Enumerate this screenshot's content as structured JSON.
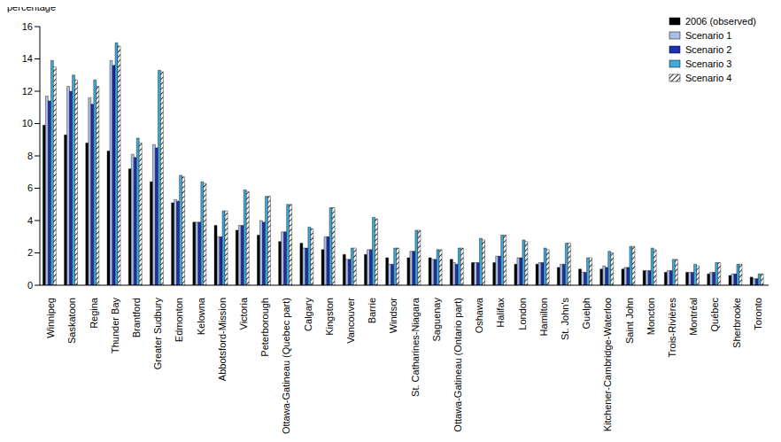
{
  "chart_data": {
    "type": "bar",
    "y_label": "percentage",
    "categories": [
      "Winnipeg",
      "Saskatoon",
      "Regina",
      "Thunder Bay",
      "Brantford",
      "Greater Sudbury",
      "Edmonton",
      "Kelowna",
      "Abbotsford-Mission",
      "Victoria",
      "Peterborough",
      "Ottawa-Gatineau (Quebec part)",
      "Calgary",
      "Kingston",
      "Vancouver",
      "Barrie",
      "Windsor",
      "St. Catharines-Niagara",
      "Saguenay",
      "Ottawa-Gatineau (Ontario part)",
      "Oshawa",
      "Halifax",
      "London",
      "Hamilton",
      "St. John's",
      "Guelph",
      "Kitchener-Cambridge-Waterloo",
      "Saint John",
      "Moncton",
      "Trois-Rivières",
      "Montréal",
      "Québec",
      "Sherbrooke",
      "Toronto"
    ],
    "series": [
      {
        "name": "2006 (observed)",
        "color": "#000000",
        "values": [
          9.9,
          9.3,
          8.8,
          8.3,
          7.2,
          6.4,
          5.1,
          3.9,
          3.7,
          3.4,
          3.1,
          2.7,
          2.6,
          2.2,
          1.9,
          1.9,
          1.7,
          1.7,
          1.7,
          1.6,
          1.4,
          1.4,
          1.3,
          1.3,
          1.1,
          1.0,
          1.0,
          1.0,
          0.9,
          0.8,
          0.8,
          0.7,
          0.6,
          0.5
        ]
      },
      {
        "name": "Scenario 1",
        "color": "#aabfe6",
        "values": [
          11.7,
          12.3,
          11.6,
          13.9,
          8.1,
          8.7,
          5.3,
          3.9,
          3.0,
          3.7,
          4.0,
          3.3,
          2.3,
          3.0,
          1.6,
          2.2,
          1.3,
          2.1,
          1.6,
          1.4,
          1.4,
          1.8,
          1.7,
          1.4,
          1.3,
          0.8,
          1.2,
          1.1,
          0.9,
          0.9,
          0.8,
          0.8,
          0.7,
          0.4
        ]
      },
      {
        "name": "Scenario 2",
        "color": "#1f2fb0",
        "values": [
          11.4,
          12.0,
          11.2,
          13.6,
          7.9,
          8.5,
          5.2,
          3.9,
          3.0,
          3.7,
          3.9,
          3.3,
          2.3,
          3.0,
          1.6,
          2.2,
          1.3,
          2.1,
          1.6,
          1.3,
          1.4,
          1.8,
          1.7,
          1.4,
          1.3,
          0.8,
          1.1,
          1.1,
          0.9,
          0.9,
          0.8,
          0.8,
          0.7,
          0.4
        ]
      },
      {
        "name": "Scenario 3",
        "color": "#3fa9d8",
        "values": [
          13.9,
          13.0,
          12.7,
          15.0,
          9.1,
          13.3,
          6.8,
          6.4,
          4.6,
          5.9,
          5.5,
          5.0,
          3.6,
          4.8,
          2.3,
          4.2,
          2.3,
          3.4,
          2.2,
          2.3,
          2.9,
          3.1,
          2.8,
          2.3,
          2.6,
          1.7,
          2.1,
          2.4,
          2.3,
          1.6,
          1.3,
          1.4,
          1.3,
          0.7
        ]
      },
      {
        "name": "Scenario 4",
        "color": "#000000",
        "marker": "hatch",
        "values": [
          13.5,
          12.7,
          12.3,
          14.8,
          8.8,
          13.2,
          6.7,
          6.3,
          4.6,
          5.8,
          5.5,
          5.0,
          3.5,
          4.8,
          2.3,
          4.1,
          2.3,
          3.4,
          2.2,
          2.3,
          2.8,
          3.1,
          2.7,
          2.2,
          2.6,
          1.7,
          2.0,
          2.4,
          2.2,
          1.6,
          1.2,
          1.4,
          1.3,
          0.7
        ]
      }
    ],
    "ylim": [
      0,
      16
    ],
    "yticks": [
      0,
      2,
      4,
      6,
      8,
      10,
      12,
      14,
      16
    ],
    "grid": false,
    "legend": "upper right"
  }
}
